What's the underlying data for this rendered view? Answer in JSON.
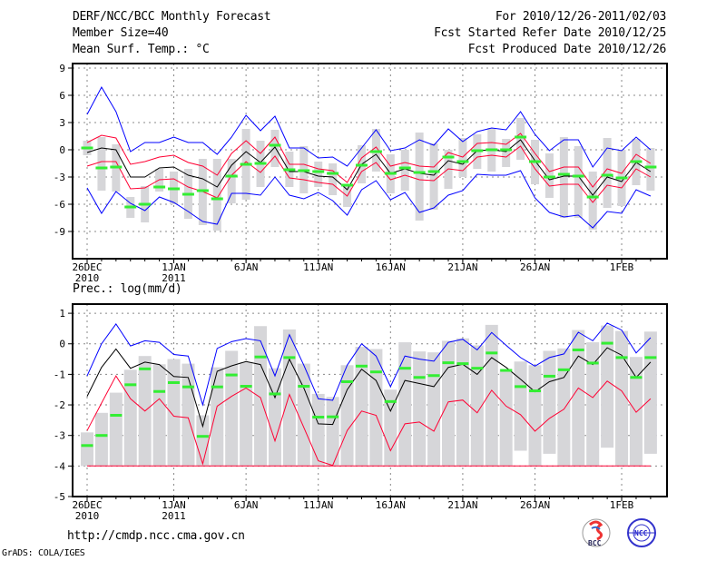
{
  "header": {
    "title": "DERF/NCC/BCC Monthly Forecast",
    "member_size": "Member Size=40",
    "variable": "Mean Surf. Temp.: °C",
    "period": "For 2010/12/26-2011/02/03",
    "start_date": "Fcst Started Refer Date 2010/12/25",
    "produced_date": "Fcst Produced Date 2010/12/26"
  },
  "footer": {
    "url": "http://cmdp.ncc.cma.gov.cn",
    "credit": "GrADS: COLA/IGES",
    "logo_bcc": "BCC",
    "logo_ncc": "NCC"
  },
  "colors": {
    "blue": "#0000ff",
    "red": "#ff0033",
    "black": "#000000",
    "green": "#33ee33",
    "gray": "#d6d6d9"
  },
  "chart_data": [
    {
      "type": "line",
      "name": "temperature",
      "title": "Mean Surf. Temp.: °C",
      "xlabel": "",
      "ylabel": "",
      "ylim": [
        -12,
        9.5
      ],
      "yticks": [
        9,
        6,
        3,
        0,
        -3,
        -6,
        -9
      ],
      "ytick_labels": [
        "9",
        "6",
        "3",
        "0",
        "-3",
        "-6",
        "-9"
      ],
      "xticks": [
        {
          "day": 0,
          "label": "26DEC",
          "sub": "2010"
        },
        {
          "day": 6,
          "label": "1JAN",
          "sub": "2011"
        },
        {
          "day": 11,
          "label": "6JAN",
          "sub": ""
        },
        {
          "day": 16,
          "label": "11JAN",
          "sub": ""
        },
        {
          "day": 21,
          "label": "16JAN",
          "sub": ""
        },
        {
          "day": 26,
          "label": "21JAN",
          "sub": ""
        },
        {
          "day": 31,
          "label": "26JAN",
          "sub": ""
        },
        {
          "day": 37,
          "label": "1FEB",
          "sub": ""
        }
      ],
      "grid": true,
      "series": [
        {
          "name": "ensemble-max",
          "color": "blue",
          "values": [
            3.9,
            6.9,
            4.2,
            -0.2,
            0.8,
            0.8,
            1.4,
            0.8,
            0.8,
            -0.5,
            1.4,
            3.8,
            2.1,
            3.7,
            0.2,
            0.2,
            -0.9,
            -0.8,
            -1.8,
            0.2,
            2.2,
            -0.1,
            0.2,
            1.1,
            0.5,
            2.3,
            0.9,
            2.0,
            2.4,
            2.2,
            4.2,
            1.7,
            -0.1,
            1.1,
            1.1,
            -1.9,
            0.2,
            -0.1,
            1.4,
            0.0
          ]
        },
        {
          "name": "ensemble-upper",
          "color": "red",
          "values": [
            0.8,
            1.6,
            1.3,
            -1.6,
            -1.3,
            -0.8,
            -0.6,
            -1.4,
            -1.8,
            -2.8,
            -0.4,
            1.0,
            -0.4,
            1.4,
            -1.6,
            -1.6,
            -2.1,
            -2.3,
            -3.6,
            -0.9,
            0.3,
            -1.8,
            -1.4,
            -1.8,
            -1.9,
            -0.3,
            -0.8,
            0.7,
            0.8,
            0.6,
            1.8,
            -0.4,
            -2.4,
            -1.9,
            -1.9,
            -4.1,
            -2.1,
            -2.6,
            -0.5,
            -1.5
          ]
        },
        {
          "name": "ensemble-mean",
          "color": "black",
          "values": [
            -0.3,
            0.2,
            0.0,
            -3.0,
            -3.0,
            -2.0,
            -1.9,
            -2.8,
            -3.2,
            -4.1,
            -1.7,
            -0.2,
            -1.4,
            0.3,
            -2.4,
            -2.4,
            -2.9,
            -3.0,
            -4.4,
            -1.6,
            -0.5,
            -2.6,
            -2.1,
            -2.6,
            -2.8,
            -1.2,
            -1.6,
            -0.1,
            0.0,
            -0.2,
            1.1,
            -1.2,
            -3.3,
            -2.9,
            -2.9,
            -5.0,
            -3.0,
            -3.5,
            -1.4,
            -2.4
          ]
        },
        {
          "name": "ensemble-lower",
          "color": "red",
          "values": [
            -1.8,
            -1.3,
            -1.3,
            -4.3,
            -4.2,
            -3.3,
            -3.2,
            -4.1,
            -4.6,
            -5.3,
            -2.8,
            -1.3,
            -2.5,
            -0.7,
            -3.1,
            -3.3,
            -3.6,
            -3.8,
            -5.1,
            -2.4,
            -1.4,
            -3.3,
            -2.8,
            -3.3,
            -3.4,
            -2.1,
            -2.3,
            -0.8,
            -0.6,
            -0.8,
            0.4,
            -2.1,
            -4.0,
            -3.8,
            -3.8,
            -5.8,
            -3.9,
            -4.2,
            -2.1,
            -3.0
          ]
        },
        {
          "name": "ensemble-min",
          "color": "blue",
          "values": [
            -4.2,
            -7.0,
            -4.6,
            -5.9,
            -6.7,
            -5.2,
            -5.8,
            -6.8,
            -7.9,
            -8.2,
            -4.8,
            -4.8,
            -5.0,
            -3.0,
            -5.0,
            -5.4,
            -4.7,
            -5.6,
            -7.2,
            -4.4,
            -3.4,
            -5.5,
            -4.7,
            -6.9,
            -6.4,
            -5.0,
            -4.5,
            -2.7,
            -2.8,
            -2.8,
            -2.3,
            -5.3,
            -6.9,
            -7.4,
            -7.2,
            -8.6,
            -6.8,
            -7.0,
            -4.4,
            -5.1
          ]
        }
      ],
      "observed": [
        0.2,
        -2.0,
        -1.9,
        -6.3,
        -6.0,
        -4.1,
        -4.3,
        -4.9,
        -4.5,
        -5.4,
        -2.9,
        -1.6,
        -1.5,
        0.5,
        -2.2,
        -2.3,
        -2.4,
        -2.6,
        -3.9,
        -1.7,
        -0.2,
        -2.6,
        -2.0,
        -2.5,
        -2.4,
        -0.8,
        -1.3,
        -0.1,
        0.0,
        0.0,
        1.4,
        -1.3,
        -3.0,
        -2.7,
        -2.9,
        -5.2,
        -2.8,
        -3.1,
        -1.3,
        -1.9
      ],
      "range_bars": {
        "high": [
          1.0,
          1.4,
          0.6,
          -5.2,
          -4.0,
          -2.1,
          -2.4,
          -2.1,
          -1.0,
          -1.0,
          -1.0,
          2.3,
          1.0,
          2.2,
          -0.2,
          0.4,
          -1.3,
          -1.5,
          -3.8,
          0.5,
          2.3,
          -0.5,
          0.0,
          1.9,
          0.7,
          0.0,
          1.3,
          1.7,
          2.4,
          1.2,
          3.5,
          1.1,
          -0.4,
          1.4,
          0.4,
          -2.4,
          1.3,
          0.0,
          1.2,
          0.2
        ],
        "low": [
          -0.6,
          -4.5,
          -4.6,
          -7.5,
          -8.0,
          -4.6,
          -6.0,
          -7.6,
          -8.3,
          -8.9,
          -5.9,
          -5.5,
          -4.1,
          -1.9,
          -4.1,
          -4.8,
          -4.1,
          -5.0,
          -6.3,
          -3.7,
          -2.4,
          -4.8,
          -4.5,
          -7.8,
          -6.6,
          -4.3,
          -3.0,
          -2.1,
          -2.4,
          -1.9,
          -1.1,
          -3.8,
          -5.3,
          -7.5,
          -7.5,
          -8.8,
          -6.4,
          -6.2,
          -3.9,
          -4.5
        ]
      }
    },
    {
      "type": "line",
      "name": "precipitation",
      "title": "Prec.: log(mm/d)",
      "xlabel": "",
      "ylabel": "",
      "ylim": [
        -5,
        1.3
      ],
      "yticks": [
        1,
        0,
        -1,
        -2,
        -3,
        -4,
        -5
      ],
      "ytick_labels": [
        "1",
        "0",
        "-1",
        "-2",
        "-3",
        "-4",
        "-5"
      ],
      "xticks": [
        {
          "day": 0,
          "label": "26DEC",
          "sub": "2010"
        },
        {
          "day": 6,
          "label": "1JAN",
          "sub": "2011"
        },
        {
          "day": 11,
          "label": "6JAN",
          "sub": ""
        },
        {
          "day": 16,
          "label": "11JAN",
          "sub": ""
        },
        {
          "day": 21,
          "label": "16JAN",
          "sub": ""
        },
        {
          "day": 26,
          "label": "21JAN",
          "sub": ""
        },
        {
          "day": 31,
          "label": "26JAN",
          "sub": ""
        },
        {
          "day": 37,
          "label": "1FEB",
          "sub": ""
        }
      ],
      "grid": true,
      "series": [
        {
          "name": "ensemble-max",
          "color": "blue",
          "values": [
            -1.05,
            0.0,
            0.65,
            -0.07,
            0.1,
            0.05,
            -0.35,
            -0.4,
            -2.0,
            -0.15,
            0.07,
            0.17,
            0.1,
            -1.05,
            0.3,
            -0.7,
            -1.8,
            -1.85,
            -0.7,
            0.0,
            -0.4,
            -1.4,
            -0.4,
            -0.5,
            -0.57,
            0.05,
            0.15,
            -0.2,
            0.37,
            -0.05,
            -0.45,
            -0.73,
            -0.45,
            -0.33,
            0.38,
            0.1,
            0.68,
            0.45,
            -0.3,
            0.2
          ]
        },
        {
          "name": "ensemble-mean",
          "color": "black",
          "values": [
            -1.72,
            -0.77,
            -0.17,
            -0.8,
            -0.6,
            -0.68,
            -1.07,
            -1.1,
            -2.7,
            -0.9,
            -0.72,
            -0.58,
            -0.68,
            -1.76,
            -0.5,
            -1.45,
            -2.62,
            -2.64,
            -1.5,
            -0.83,
            -1.2,
            -2.2,
            -1.2,
            -1.3,
            -1.4,
            -0.77,
            -0.67,
            -1.0,
            -0.45,
            -0.77,
            -1.16,
            -1.57,
            -1.24,
            -1.1,
            -0.4,
            -0.68,
            -0.13,
            -0.37,
            -1.1,
            -0.6
          ]
        },
        {
          "name": "ensemble-lower",
          "color": "red",
          "values": [
            -2.84,
            -1.94,
            -1.05,
            -1.8,
            -2.2,
            -1.8,
            -2.37,
            -2.42,
            -3.93,
            -2.04,
            -1.72,
            -1.45,
            -1.76,
            -3.18,
            -1.66,
            -2.74,
            -3.83,
            -3.98,
            -2.84,
            -2.2,
            -2.34,
            -3.5,
            -2.62,
            -2.56,
            -2.86,
            -1.9,
            -1.84,
            -2.26,
            -1.52,
            -2.04,
            -2.32,
            -2.86,
            -2.44,
            -2.14,
            -1.45,
            -1.76,
            -1.22,
            -1.54,
            -2.24,
            -1.8
          ]
        },
        {
          "name": "ensemble-min",
          "color": "red",
          "values": [
            -4,
            -4,
            -4,
            -4,
            -4,
            -4,
            -4,
            -4,
            -4,
            -4,
            -4,
            -4,
            -4,
            -4,
            -4,
            -4,
            -4,
            -4,
            -4,
            -4,
            -4,
            -4,
            -4,
            -4,
            -4,
            -4,
            -4,
            -4,
            -4,
            -4,
            -4,
            -4,
            -4,
            -4,
            -4,
            -4,
            -4,
            -4,
            -4,
            -4
          ]
        }
      ],
      "observed": [
        -3.33,
        -3.0,
        -2.34,
        -1.34,
        -0.82,
        -1.56,
        -1.27,
        -1.41,
        -3.03,
        -1.41,
        -1.02,
        -1.39,
        -0.43,
        -1.64,
        -0.45,
        -1.39,
        -2.4,
        -2.39,
        -1.24,
        -0.73,
        -0.92,
        -1.89,
        -0.8,
        -1.1,
        -1.04,
        -0.62,
        -0.65,
        -0.8,
        -0.3,
        -0.87,
        -1.4,
        -1.54,
        -1.06,
        -0.85,
        -0.2,
        -0.63,
        0.02,
        -0.45,
        -1.1,
        -0.45
      ],
      "range_bars": {
        "high": [
          -2.9,
          -2.26,
          -1.6,
          -0.85,
          -0.4,
          -0.67,
          -0.5,
          -0.65,
          -2.34,
          -0.77,
          -0.23,
          -0.6,
          0.58,
          -0.8,
          0.47,
          -0.65,
          -1.64,
          -1.74,
          -0.7,
          -0.1,
          -0.17,
          -1.5,
          0.05,
          -0.25,
          -0.28,
          0.1,
          0.18,
          -0.05,
          0.62,
          -0.83,
          -0.58,
          -0.7,
          -0.23,
          -0.15,
          0.45,
          0.05,
          0.6,
          0.42,
          -0.43,
          0.4
        ],
        "low": [
          -4,
          -4,
          -4,
          -4,
          -4,
          -4,
          -4,
          -4,
          -4,
          -4,
          -4,
          -4,
          -4,
          -4,
          -4,
          -4,
          -4,
          -4,
          -4,
          -4,
          -4,
          -4,
          -4,
          -4,
          -4,
          -4,
          -4,
          -4,
          -4,
          -4,
          -3.5,
          -4,
          -3.6,
          -4,
          -4,
          -4,
          -3.4,
          -4,
          -4,
          -3.6
        ]
      }
    }
  ]
}
